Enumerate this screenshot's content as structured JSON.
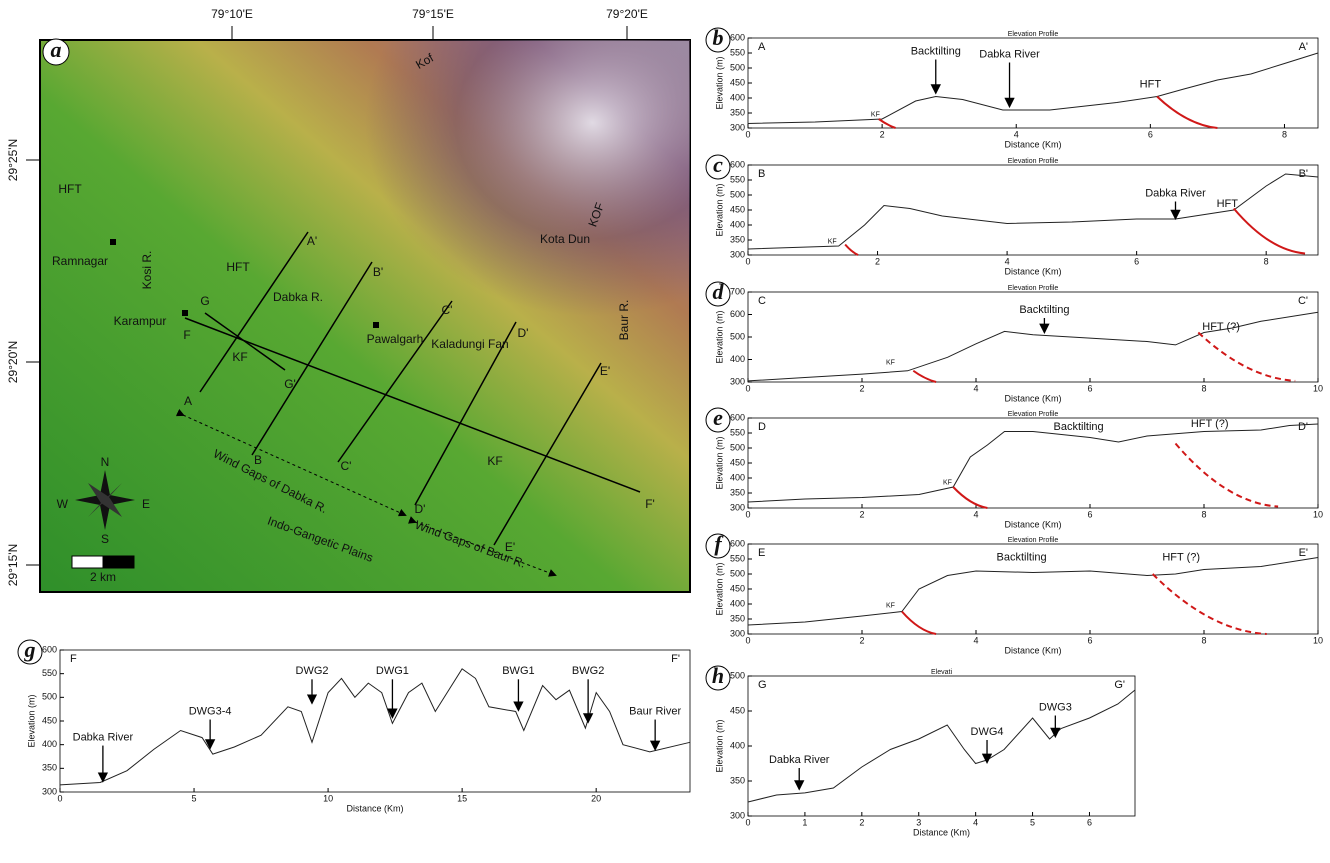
{
  "map": {
    "panel": "a",
    "lon_labels": [
      "79°10'E",
      "79°15'E",
      "79°20'E"
    ],
    "lat_labels": [
      "29°25'N",
      "29°20'N",
      "29°15'N"
    ],
    "labels": [
      "Kof",
      "HFT",
      "Ramnagar",
      "Kosi R.",
      "A'",
      "B'",
      "HFT",
      "KOF",
      "Kota Dun",
      "C'",
      "Dabka R.",
      "D'",
      "G",
      "Karampur",
      "F",
      "Pawalgarh",
      "Kaladungi Fan",
      "E'",
      "Baur R.",
      "KF",
      "G'",
      "A",
      "B",
      "C'",
      "KF",
      "F'",
      "Wind Gaps of Dabka R.",
      "D'",
      "E'",
      "Wind Gaps of Baur R.",
      "Indo-Gangetic Plains"
    ],
    "compass": [
      "N",
      "E",
      "S",
      "W"
    ],
    "scale": "2 km"
  },
  "chart_data": [
    {
      "type": "line",
      "panel": "b",
      "title": "Elevation Profile",
      "corner_labels": [
        "A",
        "A'"
      ],
      "annotations": [
        "KF",
        "Backtilting",
        "Dabka River",
        "HFT"
      ],
      "xlabel": "Distance (Km)",
      "ylabel": "Elevation (m)",
      "xlim": [
        0,
        8.5
      ],
      "xticks": [
        0,
        2,
        4,
        6,
        8
      ],
      "ylim": [
        300,
        600
      ],
      "yticks": [
        300,
        350,
        400,
        450,
        500,
        550,
        600
      ],
      "color": "#222222",
      "x": [
        0,
        1,
        2,
        2.5,
        2.8,
        3.2,
        3.8,
        4.5,
        5.5,
        6.1,
        6.5,
        7,
        7.5,
        8,
        8.5
      ],
      "values": [
        315,
        320,
        330,
        390,
        405,
        395,
        360,
        360,
        385,
        405,
        430,
        460,
        480,
        515,
        550
      ]
    },
    {
      "type": "line",
      "panel": "c",
      "title": "Elevation Profile",
      "corner_labels": [
        "B",
        "B'"
      ],
      "annotations": [
        "KF",
        "Dabka River",
        "HFT"
      ],
      "xlabel": "Distance (Km)",
      "ylabel": "Elevation (m)",
      "xlim": [
        0,
        8.8
      ],
      "xticks": [
        0,
        2,
        4,
        6,
        8
      ],
      "ylim": [
        300,
        600
      ],
      "yticks": [
        300,
        350,
        400,
        450,
        500,
        550,
        600
      ],
      "color": "#222222",
      "x": [
        0,
        1.4,
        1.8,
        2.1,
        2.5,
        3,
        4,
        5,
        6,
        6.6,
        7.5,
        8,
        8.3,
        8.8
      ],
      "values": [
        320,
        330,
        400,
        465,
        455,
        430,
        405,
        410,
        420,
        420,
        450,
        530,
        570,
        560
      ]
    },
    {
      "type": "line",
      "panel": "d",
      "title": "Elevation Profile",
      "corner_labels": [
        "C",
        "C'"
      ],
      "annotations": [
        "KF",
        "Backtilting",
        "HFT (?)"
      ],
      "xlabel": "Distance (Km)",
      "ylabel": "Elevation (m)",
      "xlim": [
        0,
        10
      ],
      "xticks": [
        0,
        2,
        4,
        6,
        8,
        10
      ],
      "ylim": [
        300,
        700
      ],
      "yticks": [
        300,
        400,
        500,
        600,
        700
      ],
      "color": "#222222",
      "x": [
        0,
        1,
        2,
        2.8,
        3.5,
        4,
        4.5,
        5,
        6,
        7,
        7.5,
        8,
        8.5,
        9,
        10
      ],
      "values": [
        305,
        320,
        335,
        350,
        410,
        470,
        525,
        510,
        495,
        480,
        465,
        520,
        540,
        570,
        610
      ]
    },
    {
      "type": "line",
      "panel": "e",
      "title": "Elevation Profile",
      "corner_labels": [
        "D",
        "D'"
      ],
      "annotations": [
        "KF",
        "Backtilting",
        "HFT (?)"
      ],
      "xlabel": "Distance (Km)",
      "ylabel": "Elevation (m)",
      "xlim": [
        0,
        10
      ],
      "xticks": [
        0,
        2,
        4,
        6,
        8,
        10
      ],
      "ylim": [
        300,
        600
      ],
      "yticks": [
        300,
        350,
        400,
        450,
        500,
        550,
        600
      ],
      "color": "#222222",
      "x": [
        0,
        1,
        2,
        3,
        3.6,
        3.9,
        4.2,
        4.5,
        5,
        6,
        6.5,
        7,
        8,
        9,
        9.5,
        10
      ],
      "values": [
        320,
        330,
        335,
        345,
        370,
        470,
        510,
        555,
        555,
        535,
        520,
        540,
        555,
        560,
        575,
        580
      ]
    },
    {
      "type": "line",
      "panel": "f",
      "title": "Elevation Profile",
      "corner_labels": [
        "E",
        "E'"
      ],
      "annotations": [
        "KF",
        "Backtilting",
        "HFT (?)"
      ],
      "xlabel": "Distance (Km)",
      "ylabel": "Elevation (m)",
      "xlim": [
        0,
        10
      ],
      "xticks": [
        0,
        2,
        4,
        6,
        8,
        10
      ],
      "ylim": [
        300,
        600
      ],
      "yticks": [
        300,
        350,
        400,
        450,
        500,
        550,
        600
      ],
      "color": "#222222",
      "x": [
        0,
        1,
        2,
        2.7,
        3,
        3.5,
        4,
        5,
        6,
        7,
        7.5,
        8,
        9,
        10
      ],
      "values": [
        330,
        340,
        360,
        375,
        450,
        495,
        510,
        505,
        510,
        495,
        500,
        515,
        525,
        555
      ]
    },
    {
      "type": "line",
      "panel": "g",
      "corner_labels": [
        "F",
        "F'"
      ],
      "annotations": [
        "Dabka River",
        "DWG3-4",
        "DWG2",
        "DWG1",
        "BWG1",
        "BWG2",
        "Baur River"
      ],
      "xlabel": "Distance (Km)",
      "ylabel": "Elevation (m)",
      "xlim": [
        0,
        23.5
      ],
      "xticks": [
        0,
        5,
        10,
        15,
        20
      ],
      "ylim": [
        300,
        600
      ],
      "yticks": [
        300,
        350,
        400,
        450,
        500,
        550,
        600
      ],
      "color": "#222222",
      "x": [
        0,
        1.5,
        2.5,
        3.5,
        4.5,
        5.3,
        5.7,
        6.5,
        7.5,
        8.5,
        9,
        9.4,
        10,
        10.5,
        11,
        11.5,
        12,
        12.4,
        13,
        13.5,
        14,
        15,
        15.5,
        16,
        17,
        17.3,
        18,
        18.5,
        19,
        19.6,
        20,
        20.5,
        21,
        22,
        23.5
      ],
      "values": [
        315,
        320,
        345,
        390,
        430,
        415,
        380,
        395,
        420,
        480,
        470,
        405,
        510,
        540,
        500,
        530,
        510,
        445,
        510,
        530,
        470,
        560,
        540,
        480,
        470,
        430,
        525,
        495,
        515,
        435,
        510,
        470,
        400,
        385,
        405
      ]
    },
    {
      "type": "line",
      "panel": "h",
      "title": "Elevati",
      "corner_labels": [
        "G",
        "G'"
      ],
      "annotations": [
        "Dabka River",
        "DWG4",
        "DWG3"
      ],
      "xlabel": "Distance (Km)",
      "ylabel": "Elevation (m)",
      "xlim": [
        0,
        6.8
      ],
      "xticks": [
        0,
        1,
        2,
        3,
        4,
        5,
        6
      ],
      "ylim": [
        300,
        500
      ],
      "yticks": [
        300,
        350,
        400,
        450,
        500
      ],
      "color": "#222222",
      "x": [
        0,
        0.5,
        1,
        1.5,
        2,
        2.5,
        3,
        3.5,
        3.8,
        4,
        4.2,
        4.5,
        5,
        5.3,
        5.5,
        6,
        6.5,
        6.8
      ],
      "values": [
        320,
        330,
        333,
        340,
        370,
        395,
        410,
        430,
        395,
        375,
        380,
        395,
        440,
        410,
        425,
        440,
        460,
        480
      ]
    }
  ]
}
